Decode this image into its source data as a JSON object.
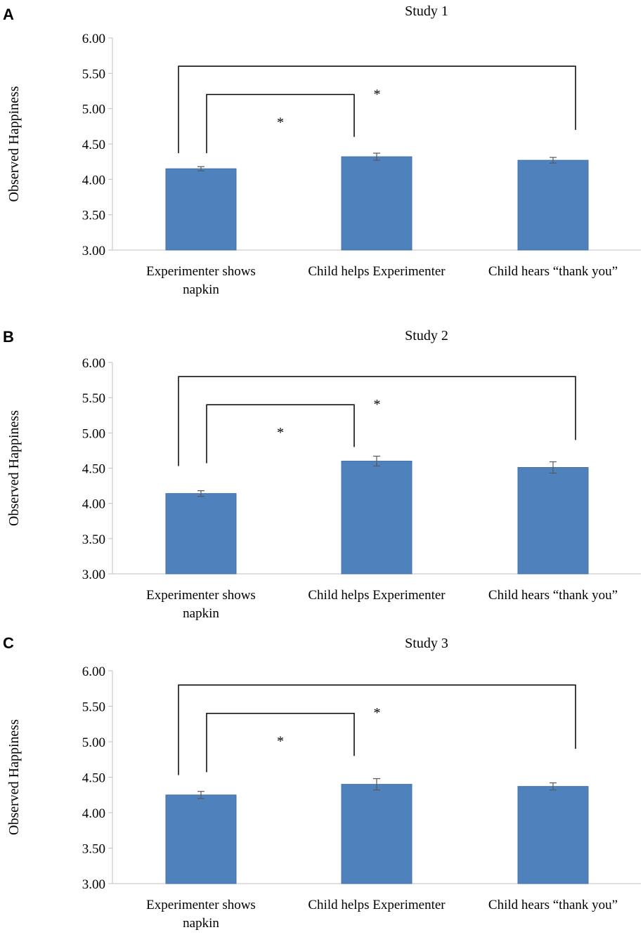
{
  "chart_data": [
    {
      "type": "bar",
      "panel": "A",
      "title": "Study 1",
      "ylabel": "Observed Happiness",
      "xlabel": "",
      "ylim": [
        3.0,
        6.0
      ],
      "yticks": [
        "3.00",
        "3.50",
        "4.00",
        "4.50",
        "5.00",
        "5.50",
        "6.00"
      ],
      "categories": [
        [
          "Experimenter shows",
          "napkin"
        ],
        [
          "Child helps Experimenter"
        ],
        [
          "Child hears “thank you”"
        ]
      ],
      "values": [
        4.15,
        4.32,
        4.27
      ],
      "errors": [
        0.03,
        0.05,
        0.04
      ],
      "significance": [
        {
          "from": 0,
          "to": 1,
          "label": "*",
          "level": 5.2,
          "start": 4.37,
          "end": 4.6
        },
        {
          "from": 0,
          "to": 2,
          "label": "*",
          "level": 5.6,
          "start": 4.37,
          "end": 4.7
        }
      ]
    },
    {
      "type": "bar",
      "panel": "B",
      "title": "Study 2",
      "ylabel": "Observed Happiness",
      "xlabel": "",
      "ylim": [
        3.0,
        6.0
      ],
      "yticks": [
        "3.00",
        "3.50",
        "4.00",
        "4.50",
        "5.00",
        "5.50",
        "6.00"
      ],
      "categories": [
        [
          "Experimenter shows",
          "napkin"
        ],
        [
          "Child helps Experimenter"
        ],
        [
          "Child hears “thank you”"
        ]
      ],
      "values": [
        4.14,
        4.6,
        4.51
      ],
      "errors": [
        0.04,
        0.07,
        0.08
      ],
      "significance": [
        {
          "from": 0,
          "to": 1,
          "label": "*",
          "level": 5.4,
          "start": 4.57,
          "end": 4.8
        },
        {
          "from": 0,
          "to": 2,
          "label": "*",
          "level": 5.8,
          "start": 4.53,
          "end": 4.9
        }
      ]
    },
    {
      "type": "bar",
      "panel": "C",
      "title": "Study 3",
      "ylabel": "Observed Happiness",
      "xlabel": "",
      "ylim": [
        3.0,
        6.0
      ],
      "yticks": [
        "3.00",
        "3.50",
        "4.00",
        "4.50",
        "5.00",
        "5.50",
        "6.00"
      ],
      "categories": [
        [
          "Experimenter shows",
          "napkin"
        ],
        [
          "Child helps Experimenter"
        ],
        [
          "Child hears “thank you”"
        ]
      ],
      "values": [
        4.25,
        4.4,
        4.37
      ],
      "errors": [
        0.05,
        0.08,
        0.05
      ],
      "significance": [
        {
          "from": 0,
          "to": 1,
          "label": "*",
          "level": 5.4,
          "start": 4.57,
          "end": 4.8
        },
        {
          "from": 0,
          "to": 2,
          "label": "*",
          "level": 5.8,
          "start": 4.53,
          "end": 4.9
        }
      ]
    }
  ],
  "colors": {
    "bar": "#4f81bd",
    "bar_edge": "#4472a8",
    "axis": "#bfbfbf",
    "error_bar": "#595959",
    "bracket": "#000000",
    "text": "#000000"
  }
}
